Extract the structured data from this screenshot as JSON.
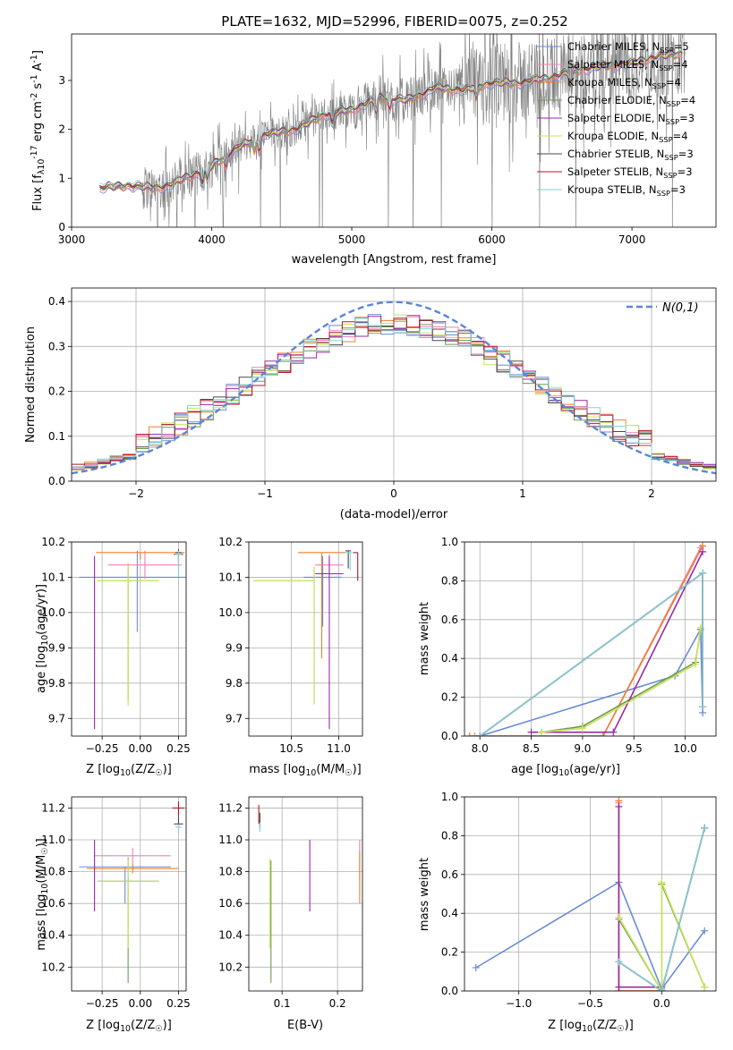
{
  "title": "PLATE=1632, MJD=52996, FIBERID=0075, z=0.252",
  "colors": {
    "chabrier_miles": "#6a8bd6",
    "salpeter_miles": "#ee82b8",
    "kroupa_miles": "#f07f2e",
    "chabrier_elodie": "#6f9b52",
    "salpeter_elodie": "#9a2aa8",
    "kroupa_elodie": "#c8e45a",
    "chabrier_stelib": "#4a4a4a",
    "salpeter_stelib": "#b01828",
    "kroupa_stelib": "#7fd2d8",
    "data": "#808080"
  },
  "chart_data": [
    {
      "id": "spectrum",
      "type": "line",
      "xlabel": "wavelength [Angstrom, rest frame]",
      "ylabel": "Flux [f_λ 10^-17 erg cm^-2 s^-1 A^-1]",
      "xlim": [
        3000,
        7600
      ],
      "ylim": [
        0,
        3.95
      ],
      "xticks": [
        "3000",
        "4000",
        "5000",
        "6000",
        "7000"
      ],
      "yticks": [
        "0",
        "1",
        "2",
        "3"
      ],
      "grid": false,
      "legend_position": "top-right",
      "series": [
        {
          "key": "chabrier_miles",
          "legend": "Chabrier MILES, N_SSP=5"
        },
        {
          "key": "salpeter_miles",
          "legend": "Salpeter MILES, N_SSP=4"
        },
        {
          "key": "kroupa_miles",
          "legend": "Kroupa MILES, N_SSP=4"
        },
        {
          "key": "chabrier_elodie",
          "legend": "Chabrier ELODIE, N_SSP=4"
        },
        {
          "key": "salpeter_elodie",
          "legend": "Salpeter ELODIE, N_SSP=3"
        },
        {
          "key": "kroupa_elodie",
          "legend": "Kroupa ELODIE, N_SSP=4"
        },
        {
          "key": "chabrier_stelib",
          "legend": "Chabrier STELIB, N_SSP=3"
        },
        {
          "key": "salpeter_stelib",
          "legend": "Salpeter STELIB, N_SSP=3"
        },
        {
          "key": "kroupa_stelib",
          "legend": "Kroupa STELIB, N_SSP=3"
        }
      ],
      "model_continuum": [
        [
          3200,
          0.8
        ],
        [
          3400,
          0.85
        ],
        [
          3600,
          0.8
        ],
        [
          3700,
          0.85
        ],
        [
          3800,
          1.0
        ],
        [
          3950,
          1.15
        ],
        [
          4050,
          1.35
        ],
        [
          4200,
          1.65
        ],
        [
          4400,
          1.9
        ],
        [
          4600,
          2.0
        ],
        [
          4800,
          2.3
        ],
        [
          5000,
          2.4
        ],
        [
          5200,
          2.65
        ],
        [
          5400,
          2.6
        ],
        [
          5600,
          2.85
        ],
        [
          5800,
          2.8
        ],
        [
          6000,
          2.95
        ],
        [
          6200,
          2.95
        ],
        [
          6400,
          3.05
        ],
        [
          6600,
          3.2
        ],
        [
          6800,
          3.3
        ],
        [
          7000,
          3.35
        ],
        [
          7200,
          3.5
        ],
        [
          7360,
          3.55
        ]
      ]
    },
    {
      "id": "residuals",
      "type": "bar",
      "xlabel": "(data-model)/error",
      "ylabel": "Normed distribution",
      "xlim": [
        -2.5,
        2.5
      ],
      "ylim": [
        0,
        0.43
      ],
      "xticks": [
        "−2",
        "−1",
        "0",
        "1",
        "2"
      ],
      "yticks": [
        "0.0",
        "0.1",
        "0.2",
        "0.3",
        "0.4"
      ],
      "grid": true,
      "legend_position": "top-right",
      "legend_label": "N(0,1)",
      "bin_width": 0.1,
      "gaussian": {
        "mean": 0,
        "sigma": 1
      }
    },
    {
      "id": "age_vs_Z",
      "type": "scatter",
      "xlabel": "Z [log10(Z/Z☉)]",
      "ylabel": "age  [log10(age/yr)]",
      "xlim": [
        -0.45,
        0.3
      ],
      "ylim": [
        9.65,
        10.2
      ],
      "xticks": [
        "−0.25",
        "0.00",
        "0.25"
      ],
      "yticks": [
        "9.7",
        "9.8",
        "9.9",
        "10.0",
        "10.1",
        "10.2"
      ],
      "grid": true,
      "errorbars": [
        {
          "key": "chabrier_miles",
          "x": -0.02,
          "xerr": 0.38,
          "y": 10.1,
          "yerr_lo": 0.155,
          "yerr_hi": 0.075
        },
        {
          "key": "salpeter_miles",
          "x": 0.03,
          "xerr": 0.24,
          "y": 10.135,
          "yerr_lo": 0.04,
          "yerr_hi": 0.04
        },
        {
          "key": "kroupa_miles",
          "x": 0.0,
          "xerr": 0.29,
          "y": 10.17,
          "yerr_lo": 0.02,
          "yerr_hi": 0.0
        },
        {
          "key": "chabrier_elodie",
          "x": -0.08,
          "xerr": 0.2,
          "y": 10.09,
          "yerr_lo": 0.34,
          "yerr_hi": 0.05
        },
        {
          "key": "salpeter_elodie",
          "x": -0.3,
          "xerr": 0.0,
          "y": 10.11,
          "yerr_lo": 0.44,
          "yerr_hi": 0.05
        },
        {
          "key": "kroupa_elodie",
          "x": -0.08,
          "xerr": 0.2,
          "y": 10.09,
          "yerr_lo": 0.355,
          "yerr_hi": 0.05
        },
        {
          "key": "chabrier_stelib",
          "x": 0.25,
          "xerr": 0.02,
          "y": 10.17,
          "yerr_lo": 0.03,
          "yerr_hi": 0.01
        },
        {
          "key": "salpeter_stelib",
          "x": 0.25,
          "xerr": 0.03,
          "y": 10.165,
          "yerr_lo": 0.02,
          "yerr_hi": 0.01
        },
        {
          "key": "kroupa_stelib",
          "x": 0.25,
          "xerr": 0.02,
          "y": 10.165,
          "yerr_lo": 0.06,
          "yerr_hi": 0.01
        }
      ]
    },
    {
      "id": "age_vs_mass",
      "type": "scatter",
      "xlabel": "mass [log10(M/M☉)]",
      "ylabel": "",
      "xlim": [
        10.05,
        11.25
      ],
      "ylim": [
        9.65,
        10.2
      ],
      "xticks": [
        "10.5",
        "11.0"
      ],
      "yticks": [
        "9.7",
        "9.8",
        "9.9",
        "10.0",
        "10.1",
        "10.2"
      ],
      "grid": true,
      "errorbars": [
        {
          "key": "chabrier_miles",
          "x": 10.83,
          "xerr_lo": 0.2,
          "xerr_hi": 0.2,
          "y": 10.1,
          "yerr_lo": 0.14,
          "yerr_hi": 0.06
        },
        {
          "key": "salpeter_miles",
          "x": 10.9,
          "xerr_lo": 0.15,
          "xerr_hi": 0.15,
          "y": 10.135,
          "yerr_lo": 0.05,
          "yerr_hi": 0.03
        },
        {
          "key": "kroupa_miles",
          "x": 10.82,
          "xerr_lo": 0.25,
          "xerr_hi": 0.25,
          "y": 10.17,
          "yerr_lo": 0.3,
          "yerr_hi": 0.0
        },
        {
          "key": "chabrier_elodie",
          "x": 10.74,
          "xerr_lo": 0.64,
          "xerr_hi": 0.0,
          "y": 10.09,
          "yerr_lo": 0.35,
          "yerr_hi": 0.04
        },
        {
          "key": "salpeter_elodie",
          "x": 10.9,
          "xerr_lo": 0.15,
          "xerr_hi": 0.15,
          "y": 10.11,
          "yerr_lo": 0.44,
          "yerr_hi": 0.05
        },
        {
          "key": "kroupa_elodie",
          "x": 10.74,
          "xerr_lo": 0.64,
          "xerr_hi": 0.0,
          "y": 10.09,
          "yerr_lo": 0.35,
          "yerr_hi": 0.04
        },
        {
          "key": "chabrier_stelib",
          "x": 11.1,
          "xerr_lo": 0.03,
          "xerr_hi": 0.03,
          "y": 10.175,
          "yerr_lo": 0.05,
          "yerr_hi": 0.0
        },
        {
          "key": "salpeter_stelib",
          "x": 11.2,
          "xerr_lo": 0.05,
          "xerr_hi": 0.0,
          "y": 10.17,
          "yerr_lo": 0.08,
          "yerr_hi": 0.0
        },
        {
          "key": "kroupa_stelib",
          "x": 11.12,
          "xerr_lo": 0.05,
          "xerr_hi": 0.02,
          "y": 10.17,
          "yerr_lo": 0.05,
          "yerr_hi": 0.0
        }
      ]
    },
    {
      "id": "mass_weight_vs_age",
      "type": "line",
      "xlabel": "age  [log10(age/yr)]",
      "ylabel": "mass weight",
      "xlim": [
        7.85,
        10.3
      ],
      "ylim": [
        0,
        1.0
      ],
      "xticks": [
        "8.0",
        "8.5",
        "9.0",
        "9.5",
        "10.0"
      ],
      "yticks": [
        "0.0",
        "0.2",
        "0.4",
        "0.6",
        "0.8",
        "1.0"
      ],
      "grid": true,
      "series": [
        {
          "key": "chabrier_miles",
          "x": [
            8.0,
            9.9,
            10.15,
            10.17
          ],
          "y": [
            0.0,
            0.31,
            0.55,
            0.12
          ]
        },
        {
          "key": "salpeter_miles",
          "x": [
            7.95,
            9.2,
            10.15
          ],
          "y": [
            0.0,
            0.0,
            0.97
          ]
        },
        {
          "key": "kroupa_miles",
          "x": [
            7.9,
            9.2,
            10.17
          ],
          "y": [
            0.0,
            0.0,
            0.98
          ]
        },
        {
          "key": "chabrier_elodie",
          "x": [
            8.6,
            9.0,
            10.1,
            10.15
          ],
          "y": [
            0.02,
            0.05,
            0.38,
            0.55
          ]
        },
        {
          "key": "salpeter_elodie",
          "x": [
            8.5,
            9.3,
            10.17
          ],
          "y": [
            0.02,
            0.02,
            0.95
          ]
        },
        {
          "key": "kroupa_elodie",
          "x": [
            8.6,
            9.0,
            10.1,
            10.15
          ],
          "y": [
            0.02,
            0.04,
            0.37,
            0.56
          ]
        },
        {
          "key": "chabrier_stelib",
          "x": [
            8.0,
            10.17,
            10.17
          ],
          "y": [
            0.0,
            0.84,
            0.15
          ]
        },
        {
          "key": "salpeter_stelib",
          "x": [
            8.0,
            10.17,
            10.17
          ],
          "y": [
            0.0,
            0.84,
            0.15
          ]
        },
        {
          "key": "kroupa_stelib",
          "x": [
            8.0,
            10.17,
            10.17
          ],
          "y": [
            0.0,
            0.84,
            0.15
          ]
        }
      ]
    },
    {
      "id": "mass_vs_Z",
      "type": "scatter",
      "xlabel": "Z [log10(Z/Z☉)]",
      "ylabel": "mass [log10(M/M☉)]",
      "xlim": [
        -0.45,
        0.3
      ],
      "ylim": [
        10.05,
        11.27
      ],
      "xticks": [
        "−0.25",
        "0.00",
        "0.25"
      ],
      "yticks": [
        "10.2",
        "10.4",
        "10.6",
        "10.8",
        "11.0",
        "11.2"
      ],
      "grid": true,
      "errorbars": [
        {
          "key": "chabrier_miles",
          "x": -0.1,
          "xerr": 0.3,
          "y": 10.83,
          "yerr_lo": 0.23,
          "yerr_hi": 0.0
        },
        {
          "key": "salpeter_miles",
          "x": -0.05,
          "xerr": 0.25,
          "y": 10.9,
          "yerr_lo": 0.05,
          "yerr_hi": 0.05
        },
        {
          "key": "kroupa_miles",
          "x": -0.05,
          "xerr": 0.3,
          "y": 10.82,
          "yerr_lo": 0.03,
          "yerr_hi": 0.03
        },
        {
          "key": "chabrier_elodie",
          "x": -0.08,
          "xerr": 0.2,
          "y": 10.74,
          "yerr_lo": 0.64,
          "yerr_hi": 0.15
        },
        {
          "key": "salpeter_elodie",
          "x": -0.3,
          "xerr": 0.0,
          "y": 10.9,
          "yerr_lo": 0.35,
          "yerr_hi": 0.1
        },
        {
          "key": "kroupa_elodie",
          "x": -0.08,
          "xerr": 0.2,
          "y": 10.74,
          "yerr_lo": 0.42,
          "yerr_hi": 0.14
        },
        {
          "key": "chabrier_stelib",
          "x": 0.25,
          "xerr": 0.03,
          "y": 11.1,
          "yerr_lo": 0.0,
          "yerr_hi": 0.1
        },
        {
          "key": "salpeter_stelib",
          "x": 0.25,
          "xerr": 0.04,
          "y": 11.2,
          "yerr_lo": 0.04,
          "yerr_hi": 0.04
        },
        {
          "key": "kroupa_stelib",
          "x": 0.25,
          "xerr": 0.02,
          "y": 11.08,
          "yerr_lo": 0.04,
          "yerr_hi": 0.0
        }
      ]
    },
    {
      "id": "mass_vs_ebv",
      "type": "scatter",
      "xlabel": "E(B-V)",
      "ylabel": "",
      "xlim": [
        0.04,
        0.245
      ],
      "ylim": [
        10.05,
        11.27
      ],
      "xticks": [
        "0.1",
        "0.2"
      ],
      "yticks": [
        "10.2",
        "10.4",
        "10.6",
        "10.8",
        "11.0",
        "11.2"
      ],
      "grid": true,
      "errorbars": [
        {
          "key": "chabrier_miles",
          "x": 0.06,
          "y": 11.1,
          "yerr_lo": 0.03,
          "yerr_hi": 0.03
        },
        {
          "key": "salpeter_miles",
          "x": 0.24,
          "y": 10.85,
          "yerr_lo": 0.1,
          "yerr_hi": 0.15
        },
        {
          "key": "kroupa_miles",
          "x": 0.24,
          "y": 10.75,
          "yerr_lo": 0.15,
          "yerr_hi": 0.18
        },
        {
          "key": "chabrier_elodie",
          "x": 0.08,
          "y": 10.6,
          "yerr_lo": 0.5,
          "yerr_hi": 0.27
        },
        {
          "key": "salpeter_elodie",
          "x": 0.15,
          "y": 10.8,
          "yerr_lo": 0.25,
          "yerr_hi": 0.2
        },
        {
          "key": "kroupa_elodie",
          "x": 0.078,
          "y": 10.6,
          "yerr_lo": 0.28,
          "yerr_hi": 0.28
        },
        {
          "key": "chabrier_stelib",
          "x": 0.06,
          "y": 11.12,
          "yerr_lo": 0.04,
          "yerr_hi": 0.05
        },
        {
          "key": "salpeter_stelib",
          "x": 0.058,
          "y": 11.15,
          "yerr_lo": 0.05,
          "yerr_hi": 0.07
        },
        {
          "key": "kroupa_stelib",
          "x": 0.06,
          "y": 11.08,
          "yerr_lo": 0.03,
          "yerr_hi": 0.03
        }
      ]
    },
    {
      "id": "mass_weight_vs_Z",
      "type": "line",
      "xlabel": "Z [log10(Z/Z☉)]",
      "ylabel": "mass weight",
      "xlim": [
        -1.38,
        0.38
      ],
      "ylim": [
        0,
        1.0
      ],
      "xticks": [
        "−1.0",
        "−0.5",
        "0.0"
      ],
      "yticks": [
        "0.0",
        "0.2",
        "0.4",
        "0.6",
        "0.8",
        "1.0"
      ],
      "grid": true,
      "series": [
        {
          "key": "chabrier_miles",
          "x": [
            -1.3,
            -0.3,
            0.0,
            0.3
          ],
          "y": [
            0.12,
            0.56,
            0.01,
            0.31
          ]
        },
        {
          "key": "salpeter_miles",
          "x": [
            -0.3,
            -0.3,
            0.0
          ],
          "y": [
            0.97,
            0.0,
            0.0
          ]
        },
        {
          "key": "kroupa_miles",
          "x": [
            -0.3,
            -0.3,
            0.0
          ],
          "y": [
            0.98,
            0.0,
            0.0
          ]
        },
        {
          "key": "chabrier_elodie",
          "x": [
            -0.3,
            0.0,
            0.0,
            0.3
          ],
          "y": [
            0.37,
            0.0,
            0.55,
            0.02
          ]
        },
        {
          "key": "salpeter_elodie",
          "x": [
            -0.3,
            -0.3,
            0.0
          ],
          "y": [
            0.95,
            0.02,
            0.02
          ]
        },
        {
          "key": "kroupa_elodie",
          "x": [
            -0.3,
            0.0,
            0.0,
            0.3
          ],
          "y": [
            0.38,
            0.0,
            0.56,
            0.02
          ]
        },
        {
          "key": "chabrier_stelib",
          "x": [
            -0.3,
            0.0,
            0.3
          ],
          "y": [
            0.15,
            0.0,
            0.84
          ]
        },
        {
          "key": "salpeter_stelib",
          "x": [
            -0.3,
            0.0,
            0.3
          ],
          "y": [
            0.15,
            0.0,
            0.84
          ]
        },
        {
          "key": "kroupa_stelib",
          "x": [
            -0.3,
            0.0,
            0.3
          ],
          "y": [
            0.15,
            0.0,
            0.84
          ]
        }
      ]
    }
  ]
}
